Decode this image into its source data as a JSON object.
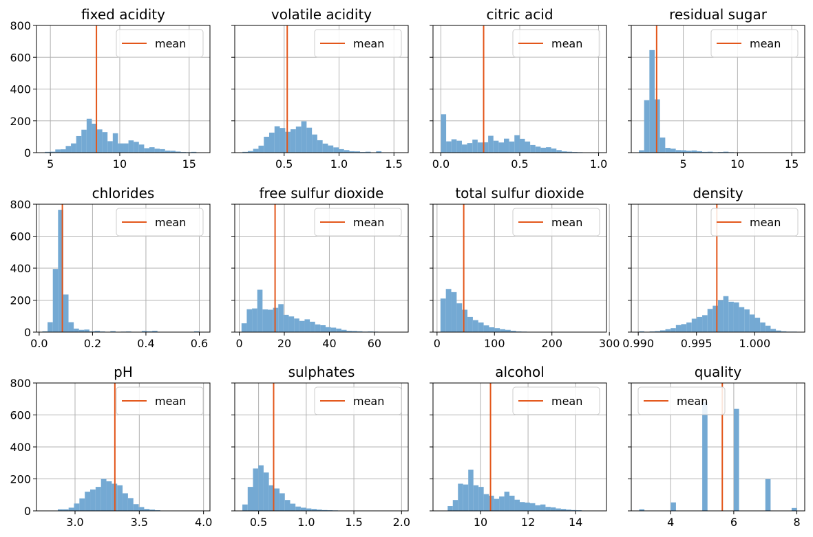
{
  "colors": {
    "bar": "#74a9d3",
    "mean_line": "#e3561a",
    "grid": "#b0b0b0",
    "axis": "#000000",
    "legend_border": "#cccccc"
  },
  "chart_data": [
    {
      "type": "bar",
      "title": "fixed acidity",
      "xlabel": "",
      "ylabel": "",
      "xlim": [
        4.0,
        16.5
      ],
      "ylim": [
        0,
        800
      ],
      "xticks": [
        5,
        10,
        15
      ],
      "xtick_labels": [
        "5",
        "10",
        "15"
      ],
      "yticks": [
        0,
        200,
        400,
        600,
        800
      ],
      "ytick_labels": [
        "0",
        "200",
        "400",
        "600",
        "800"
      ],
      "show_yticklabels": true,
      "grid": true,
      "legend": {
        "label": "mean",
        "position": "top-right"
      },
      "mean": 8.32,
      "bin_start": 4.6,
      "bin_width": 0.3767,
      "counts": [
        5,
        6,
        20,
        21,
        42,
        58,
        104,
        144,
        213,
        182,
        146,
        129,
        72,
        122,
        58,
        58,
        77,
        68,
        51,
        28,
        34,
        25,
        22,
        13,
        12,
        7,
        4,
        3,
        5,
        2
      ]
    },
    {
      "type": "bar",
      "title": "volatile acidity",
      "xlabel": "",
      "ylabel": "",
      "xlim": [
        0.05,
        1.63
      ],
      "ylim": [
        0,
        800
      ],
      "xticks": [
        0.5,
        1.0,
        1.5
      ],
      "xtick_labels": [
        "0.5",
        "1.0",
        "1.5"
      ],
      "yticks": [
        0,
        200,
        400,
        600,
        800
      ],
      "ytick_labels": [
        "0",
        "200",
        "400",
        "600",
        "800"
      ],
      "show_yticklabels": false,
      "grid": true,
      "legend": {
        "label": "mean",
        "position": "top-right"
      },
      "mean": 0.528,
      "bin_start": 0.12,
      "bin_width": 0.0487,
      "counts": [
        5,
        10,
        24,
        44,
        100,
        126,
        166,
        155,
        131,
        147,
        164,
        197,
        157,
        114,
        78,
        57,
        45,
        33,
        22,
        16,
        9,
        8,
        4,
        6,
        1,
        9,
        1,
        1,
        2,
        1
      ]
    },
    {
      "type": "bar",
      "title": "citric acid",
      "xlabel": "",
      "ylabel": "",
      "xlim": [
        -0.05,
        1.05
      ],
      "ylim": [
        0,
        800
      ],
      "xticks": [
        0.0,
        0.5,
        1.0
      ],
      "xtick_labels": [
        "0.0",
        "0.5",
        "1.0"
      ],
      "yticks": [
        0,
        200,
        400,
        600,
        800
      ],
      "ytick_labels": [
        "0",
        "200",
        "400",
        "600",
        "800"
      ],
      "show_yticklabels": false,
      "grid": true,
      "legend": {
        "label": "mean",
        "position": "top-right"
      },
      "mean": 0.271,
      "bin_start": 0.0,
      "bin_width": 0.0333,
      "counts": [
        241,
        71,
        84,
        75,
        51,
        60,
        82,
        64,
        65,
        106,
        75,
        64,
        88,
        70,
        110,
        87,
        70,
        48,
        38,
        31,
        34,
        26,
        16,
        8,
        6,
        4,
        3,
        2,
        2,
        2
      ]
    },
    {
      "type": "bar",
      "title": "residual sugar",
      "xlabel": "",
      "ylabel": "",
      "xlim": [
        0.2,
        16.2
      ],
      "ylim": [
        0,
        800
      ],
      "xticks": [
        5,
        10,
        15
      ],
      "xtick_labels": [
        "5",
        "10",
        "15"
      ],
      "yticks": [
        0,
        200,
        400,
        600,
        800
      ],
      "ytick_labels": [
        "0",
        "200",
        "400",
        "600",
        "800"
      ],
      "show_yticklabels": false,
      "grid": true,
      "legend": {
        "label": "mean",
        "position": "top-right"
      },
      "mean": 2.54,
      "bin_start": 0.9,
      "bin_width": 0.4867,
      "counts": [
        15,
        330,
        645,
        335,
        95,
        30,
        25,
        16,
        15,
        12,
        14,
        9,
        5,
        6,
        3,
        4,
        6,
        3,
        2,
        2,
        1,
        2,
        1,
        1,
        1,
        2,
        1,
        1,
        1,
        1
      ]
    },
    {
      "type": "bar",
      "title": "chlorides",
      "xlabel": "",
      "ylabel": "",
      "xlim": [
        -0.01,
        0.64
      ],
      "ylim": [
        0,
        800
      ],
      "xticks": [
        0.0,
        0.2,
        0.4,
        0.6
      ],
      "xtick_labels": [
        "0.0",
        "0.2",
        "0.4",
        "0.6"
      ],
      "yticks": [
        0,
        200,
        400,
        600,
        800
      ],
      "ytick_labels": [
        "0",
        "200",
        "400",
        "600",
        "800"
      ],
      "show_yticklabels": true,
      "grid": true,
      "legend": {
        "label": "mean",
        "position": "top-right"
      },
      "mean": 0.087,
      "bin_start": 0.012,
      "bin_width": 0.0196,
      "counts": [
        5,
        62,
        395,
        765,
        235,
        62,
        22,
        14,
        16,
        5,
        8,
        4,
        2,
        6,
        2,
        3,
        4,
        2,
        2,
        7,
        5,
        8,
        2,
        1,
        1,
        1,
        1,
        1,
        1,
        5
      ]
    },
    {
      "type": "bar",
      "title": "free sulfur dioxide",
      "xlabel": "",
      "ylabel": "",
      "xlim": [
        -2,
        75
      ],
      "ylim": [
        0,
        800
      ],
      "xticks": [
        0,
        20,
        40,
        60
      ],
      "xtick_labels": [
        "0",
        "20",
        "40",
        "60"
      ],
      "yticks": [
        0,
        200,
        400,
        600,
        800
      ],
      "ytick_labels": [
        "0",
        "200",
        "400",
        "600",
        "800"
      ],
      "show_yticklabels": false,
      "grid": true,
      "legend": {
        "label": "mean",
        "position": "top-right"
      },
      "mean": 15.9,
      "bin_start": 1.0,
      "bin_width": 2.3333,
      "counts": [
        55,
        143,
        148,
        265,
        142,
        140,
        152,
        175,
        108,
        98,
        85,
        70,
        80,
        65,
        48,
        43,
        31,
        28,
        22,
        14,
        8,
        7,
        5,
        3,
        4,
        3,
        1,
        1,
        1,
        1
      ]
    },
    {
      "type": "bar",
      "title": "total sulfur dioxide",
      "xlabel": "",
      "ylabel": "",
      "xlim": [
        -7,
        295
      ],
      "ylim": [
        0,
        800
      ],
      "xticks": [
        0,
        100,
        200,
        300
      ],
      "xtick_labels": [
        "0",
        "100",
        "200",
        "300"
      ],
      "yticks": [
        0,
        200,
        400,
        600,
        800
      ],
      "ytick_labels": [
        "0",
        "200",
        "400",
        "600",
        "800"
      ],
      "show_yticklabels": false,
      "grid": true,
      "legend": {
        "label": "mean",
        "position": "top-right"
      },
      "mean": 46.5,
      "bin_start": 6.0,
      "bin_width": 9.4,
      "counts": [
        210,
        270,
        250,
        180,
        140,
        95,
        75,
        60,
        42,
        30,
        25,
        18,
        14,
        8,
        4,
        3,
        1,
        1,
        1,
        1,
        1,
        1,
        1,
        1,
        1,
        1,
        1,
        1,
        2,
        2
      ]
    },
    {
      "type": "bar",
      "title": "density",
      "xlabel": "",
      "ylabel": "",
      "xlim": [
        0.9894,
        1.0043
      ],
      "ylim": [
        0,
        800
      ],
      "xticks": [
        0.99,
        0.995,
        1.0
      ],
      "xtick_labels": [
        "0.990",
        "0.995",
        "1.000"
      ],
      "yticks": [
        0,
        200,
        400,
        600,
        800
      ],
      "ytick_labels": [
        "0",
        "200",
        "400",
        "600",
        "800"
      ],
      "show_yticklabels": false,
      "grid": true,
      "legend": {
        "label": "mean",
        "position": "top-right"
      },
      "mean": 0.99675,
      "bin_start": 0.99007,
      "bin_width": 0.000452,
      "counts": [
        5,
        2,
        4,
        6,
        11,
        18,
        25,
        44,
        50,
        60,
        84,
        95,
        106,
        145,
        165,
        200,
        225,
        190,
        186,
        156,
        142,
        110,
        90,
        60,
        40,
        20,
        10,
        5,
        3,
        3
      ]
    },
    {
      "type": "bar",
      "title": "pH",
      "xlabel": "",
      "ylabel": "",
      "xlim": [
        2.7,
        4.05
      ],
      "ylim": [
        0,
        800
      ],
      "xticks": [
        3.0,
        3.5,
        4.0
      ],
      "xtick_labels": [
        "3.0",
        "3.5",
        "4.0"
      ],
      "yticks": [
        0,
        200,
        400,
        600,
        800
      ],
      "ytick_labels": [
        "0",
        "200",
        "400",
        "600",
        "800"
      ],
      "show_yticklabels": true,
      "grid": true,
      "legend": {
        "label": "mean",
        "position": "top-right"
      },
      "mean": 3.31,
      "bin_start": 2.74,
      "bin_width": 0.042,
      "counts": [
        1,
        1,
        1,
        10,
        10,
        20,
        46,
        78,
        120,
        134,
        150,
        200,
        185,
        170,
        160,
        110,
        80,
        42,
        24,
        12,
        8,
        4,
        2,
        1,
        1,
        1,
        1,
        1,
        1,
        2
      ]
    },
    {
      "type": "bar",
      "title": "sulphates",
      "xlabel": "",
      "ylabel": "",
      "xlim": [
        0.25,
        2.07
      ],
      "ylim": [
        0,
        800
      ],
      "xticks": [
        0.5,
        1.0,
        1.5,
        2.0
      ],
      "xtick_labels": [
        "0.5",
        "1.0",
        "1.5",
        "2.0"
      ],
      "yticks": [
        0,
        200,
        400,
        600,
        800
      ],
      "ytick_labels": [
        "0",
        "200",
        "400",
        "600",
        "800"
      ],
      "show_yticklabels": false,
      "grid": true,
      "legend": {
        "label": "mean",
        "position": "top-right"
      },
      "mean": 0.658,
      "bin_start": 0.33,
      "bin_width": 0.0557,
      "counts": [
        40,
        150,
        265,
        285,
        240,
        160,
        140,
        110,
        68,
        45,
        27,
        20,
        15,
        12,
        8,
        5,
        4,
        3,
        2,
        2,
        1,
        1,
        1,
        1,
        1,
        1,
        1,
        1,
        1,
        2
      ]
    },
    {
      "type": "bar",
      "title": "alcohol",
      "xlabel": "",
      "ylabel": "",
      "xlim": [
        8.0,
        15.3
      ],
      "ylim": [
        0,
        800
      ],
      "xticks": [
        10,
        12,
        14
      ],
      "xtick_labels": [
        "10",
        "12",
        "14"
      ],
      "yticks": [
        0,
        200,
        400,
        600,
        800
      ],
      "ytick_labels": [
        "0",
        "200",
        "400",
        "600",
        "800"
      ],
      "show_yticklabels": false,
      "grid": true,
      "legend": {
        "label": "mean",
        "position": "top-right"
      },
      "mean": 10.42,
      "bin_start": 8.4,
      "bin_width": 0.2167,
      "counts": [
        2,
        30,
        68,
        170,
        165,
        258,
        160,
        150,
        105,
        95,
        75,
        90,
        120,
        95,
        70,
        55,
        52,
        48,
        35,
        40,
        25,
        22,
        15,
        12,
        8,
        5,
        4,
        2,
        2,
        2
      ]
    },
    {
      "type": "bar",
      "title": "quality",
      "xlabel": "",
      "ylabel": "",
      "xlim": [
        2.75,
        8.25
      ],
      "ylim": [
        0,
        800
      ],
      "xticks": [
        4,
        6,
        8
      ],
      "xtick_labels": [
        "4",
        "6",
        "8"
      ],
      "yticks": [
        0,
        200,
        400,
        600,
        800
      ],
      "ytick_labels": [
        "0",
        "200",
        "400",
        "600",
        "800"
      ],
      "show_yticklabels": false,
      "grid": true,
      "legend": {
        "label": "mean",
        "position": "top-left"
      },
      "mean": 5.636,
      "bin_start": 3.0,
      "bin_width": 0.1667,
      "counts": [
        10,
        0,
        0,
        0,
        0,
        0,
        53,
        0,
        0,
        0,
        0,
        0,
        681,
        0,
        0,
        0,
        0,
        0,
        638,
        0,
        0,
        0,
        0,
        0,
        199,
        0,
        0,
        0,
        0,
        18
      ]
    }
  ]
}
